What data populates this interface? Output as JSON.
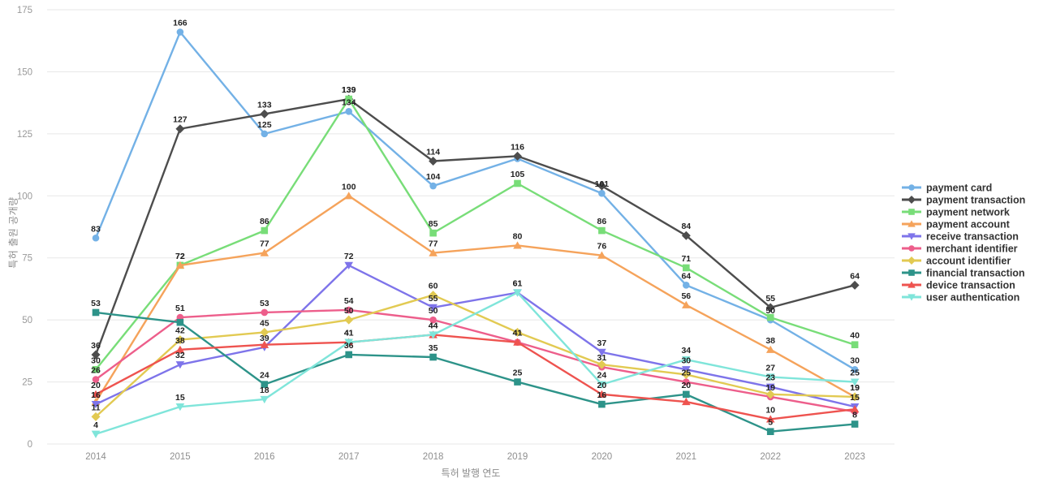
{
  "chart_data": {
    "type": "line",
    "title": "",
    "xlabel": "특허 발행 연도",
    "ylabel": "특허 출원 공개량",
    "x": [
      2014,
      2015,
      2016,
      2017,
      2018,
      2019,
      2020,
      2021,
      2022,
      2023
    ],
    "ylim": [
      0,
      175
    ],
    "ytick_interval": 25,
    "grid": "horizontal-only",
    "legend_position": "right",
    "value_labels": "above-points",
    "colors": {
      "grid_line": "#e7e7e7",
      "tick_text": "#999999",
      "value_label_text": "#222222",
      "legend_text": "#333333",
      "background": "#ffffff"
    },
    "series": [
      {
        "name": "payment card",
        "color": "#73b1e6",
        "marker": "circle",
        "values": [
          83,
          166,
          125,
          134,
          104,
          115,
          101,
          64,
          50,
          30
        ]
      },
      {
        "name": "payment transaction",
        "color": "#4d4d4d",
        "marker": "diamond",
        "values": [
          36,
          127,
          133,
          139,
          114,
          116,
          104,
          84,
          55,
          64
        ]
      },
      {
        "name": "payment network",
        "color": "#78dd78",
        "marker": "square",
        "values": [
          30,
          72,
          86,
          139,
          85,
          105,
          86,
          71,
          51,
          40
        ]
      },
      {
        "name": "payment account",
        "color": "#f5a35b",
        "marker": "triangle-up",
        "values": [
          17,
          72,
          77,
          100,
          77,
          80,
          76,
          56,
          38,
          19
        ]
      },
      {
        "name": "receive transaction",
        "color": "#7e74ea",
        "marker": "triangle-down",
        "values": [
          16,
          32,
          39,
          72,
          55,
          61,
          37,
          30,
          23,
          15
        ]
      },
      {
        "name": "merchant identifier",
        "color": "#ed5e8b",
        "marker": "circle",
        "values": [
          26,
          51,
          53,
          54,
          50,
          41,
          31,
          25,
          19,
          13
        ]
      },
      {
        "name": "account identifier",
        "color": "#e2ca52",
        "marker": "diamond",
        "values": [
          11,
          42,
          45,
          50,
          60,
          45,
          32,
          28,
          20,
          19
        ]
      },
      {
        "name": "financial transaction",
        "color": "#2d9389",
        "marker": "square",
        "values": [
          53,
          49,
          24,
          36,
          35,
          25,
          16,
          20,
          5,
          8
        ]
      },
      {
        "name": "device transaction",
        "color": "#ee534f",
        "marker": "triangle-up",
        "values": [
          20,
          38,
          40,
          41,
          44,
          41,
          20,
          17,
          10,
          14
        ]
      },
      {
        "name": "user authentication",
        "color": "#7fe5da",
        "marker": "triangle-down",
        "values": [
          4,
          15,
          18,
          41,
          44,
          61,
          24,
          34,
          27,
          25
        ]
      }
    ],
    "hidden_value_labels": [
      [
        3,
        0
      ],
      [
        7,
        1
      ],
      [
        8,
        2
      ],
      [
        0,
        5
      ],
      [
        6,
        5
      ],
      [
        1,
        6
      ],
      [
        6,
        6
      ],
      [
        6,
        7
      ],
      [
        8,
        7
      ],
      [
        2,
        8
      ],
      [
        6,
        8
      ],
      [
        5,
        9
      ],
      [
        8,
        9
      ]
    ]
  }
}
